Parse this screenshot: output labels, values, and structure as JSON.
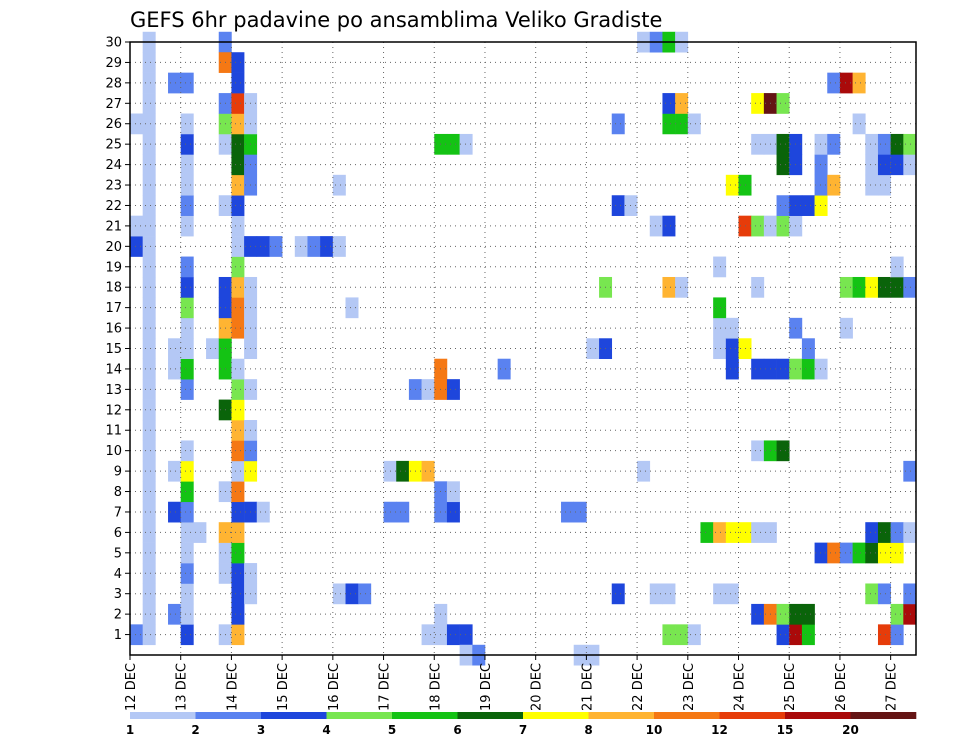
{
  "chart_data": {
    "type": "heatmap",
    "title": "GEFS 6hr padavine po ansamblima Veliko Gradiste",
    "xlabel": "",
    "ylabel": "",
    "x_ticks": [
      "12 DEC",
      "13 DEC",
      "14 DEC",
      "15 DEC",
      "16 DEC",
      "17 DEC",
      "18 DEC",
      "19 DEC",
      "20 DEC",
      "21 DEC",
      "22 DEC",
      "23 DEC",
      "24 DEC",
      "25 DEC",
      "26 DEC",
      "27 DEC"
    ],
    "y_ticks": [
      "1",
      "2",
      "3",
      "4",
      "5",
      "6",
      "7",
      "8",
      "9",
      "10",
      "11",
      "12",
      "13",
      "14",
      "15",
      "16",
      "17",
      "18",
      "19",
      "20",
      "21",
      "22",
      "23",
      "24",
      "25",
      "26",
      "27",
      "28",
      "29",
      "30"
    ],
    "x_unit": "6-hour step from 12 DEC 00",
    "ylim": [
      0,
      30
    ],
    "xlim": [
      0,
      61
    ],
    "grid": true,
    "legend_position": "bottom",
    "levels": [
      {
        "min": 1,
        "color": "#b4c8f5"
      },
      {
        "min": 2,
        "color": "#5a82f0"
      },
      {
        "min": 3,
        "color": "#1e46dc"
      },
      {
        "min": 4,
        "color": "#78e650"
      },
      {
        "min": 5,
        "color": "#14c314"
      },
      {
        "min": 6,
        "color": "#0a640a"
      },
      {
        "min": 7,
        "color": "#ffff00"
      },
      {
        "min": 8,
        "color": "#ffb432"
      },
      {
        "min": 10,
        "color": "#f57814"
      },
      {
        "min": 12,
        "color": "#e63c0a"
      },
      {
        "min": 15,
        "color": "#aa0a0a"
      },
      {
        "min": 20,
        "color": "#641414"
      }
    ],
    "legend_labels": [
      "1",
      "2",
      "3",
      "4",
      "5",
      "6",
      "7",
      "8",
      "10",
      "12",
      "15",
      "20"
    ],
    "cells": [
      [
        0,
        1,
        2
      ],
      [
        0,
        20,
        3
      ],
      [
        0,
        21,
        1
      ],
      [
        0,
        26,
        1
      ],
      [
        1,
        1,
        1
      ],
      [
        1,
        2,
        1
      ],
      [
        1,
        3,
        1
      ],
      [
        1,
        4,
        1
      ],
      [
        1,
        5,
        1
      ],
      [
        1,
        6,
        1
      ],
      [
        1,
        7,
        1
      ],
      [
        1,
        8,
        1
      ],
      [
        1,
        9,
        1
      ],
      [
        1,
        10,
        1
      ],
      [
        1,
        11,
        1
      ],
      [
        1,
        12,
        1
      ],
      [
        1,
        13,
        1
      ],
      [
        1,
        14,
        1
      ],
      [
        1,
        15,
        1
      ],
      [
        1,
        16,
        1
      ],
      [
        1,
        17,
        1
      ],
      [
        1,
        18,
        1
      ],
      [
        1,
        19,
        1
      ],
      [
        1,
        20,
        1
      ],
      [
        1,
        21,
        1
      ],
      [
        1,
        22,
        1
      ],
      [
        1,
        23,
        1
      ],
      [
        1,
        24,
        1
      ],
      [
        1,
        25,
        1
      ],
      [
        1,
        26,
        1
      ],
      [
        1,
        27,
        1
      ],
      [
        1,
        28,
        1
      ],
      [
        1,
        29,
        1
      ],
      [
        1,
        30,
        1
      ],
      [
        3,
        2,
        2
      ],
      [
        3,
        7,
        3
      ],
      [
        3,
        9,
        1
      ],
      [
        3,
        14,
        1
      ],
      [
        3,
        15,
        1
      ],
      [
        3,
        28,
        2
      ],
      [
        4,
        1,
        3
      ],
      [
        4,
        2,
        1
      ],
      [
        4,
        3,
        1
      ],
      [
        4,
        4,
        2
      ],
      [
        4,
        5,
        1
      ],
      [
        4,
        6,
        1
      ],
      [
        4,
        7,
        2
      ],
      [
        4,
        8,
        5
      ],
      [
        4,
        9,
        7
      ],
      [
        4,
        10,
        1
      ],
      [
        4,
        13,
        2
      ],
      [
        4,
        14,
        5
      ],
      [
        4,
        15,
        1
      ],
      [
        4,
        16,
        1
      ],
      [
        4,
        17,
        4
      ],
      [
        4,
        18,
        3
      ],
      [
        4,
        19,
        2
      ],
      [
        4,
        21,
        1
      ],
      [
        4,
        22,
        2
      ],
      [
        4,
        23,
        1
      ],
      [
        4,
        24,
        1
      ],
      [
        4,
        25,
        3
      ],
      [
        4,
        26,
        1
      ],
      [
        4,
        28,
        2
      ],
      [
        5,
        6,
        1
      ],
      [
        6,
        15,
        1
      ],
      [
        7,
        1,
        1
      ],
      [
        7,
        4,
        1
      ],
      [
        7,
        5,
        1
      ],
      [
        7,
        6,
        8
      ],
      [
        7,
        8,
        1
      ],
      [
        7,
        12,
        6
      ],
      [
        7,
        14,
        5
      ],
      [
        7,
        15,
        5
      ],
      [
        7,
        16,
        8
      ],
      [
        7,
        17,
        3
      ],
      [
        7,
        18,
        3
      ],
      [
        7,
        22,
        1
      ],
      [
        7,
        25,
        1
      ],
      [
        7,
        26,
        4
      ],
      [
        7,
        27,
        2
      ],
      [
        7,
        30,
        2
      ],
      [
        7,
        29,
        10
      ],
      [
        8,
        1,
        8
      ],
      [
        8,
        2,
        3
      ],
      [
        8,
        3,
        3
      ],
      [
        8,
        4,
        3
      ],
      [
        8,
        5,
        5
      ],
      [
        8,
        6,
        8
      ],
      [
        8,
        7,
        3
      ],
      [
        8,
        8,
        10
      ],
      [
        8,
        9,
        1
      ],
      [
        8,
        10,
        10
      ],
      [
        8,
        11,
        8
      ],
      [
        8,
        12,
        7
      ],
      [
        8,
        13,
        4
      ],
      [
        8,
        14,
        1
      ],
      [
        8,
        16,
        10
      ],
      [
        8,
        17,
        10
      ],
      [
        8,
        18,
        8
      ],
      [
        8,
        19,
        4
      ],
      [
        8,
        20,
        1
      ],
      [
        8,
        21,
        1
      ],
      [
        8,
        22,
        3
      ],
      [
        8,
        23,
        8
      ],
      [
        8,
        24,
        6
      ],
      [
        8,
        25,
        6
      ],
      [
        8,
        26,
        8
      ],
      [
        8,
        27,
        12
      ],
      [
        8,
        28,
        3
      ],
      [
        8,
        29,
        3
      ],
      [
        9,
        3,
        1
      ],
      [
        9,
        4,
        1
      ],
      [
        9,
        7,
        3
      ],
      [
        9,
        9,
        7
      ],
      [
        9,
        10,
        2
      ],
      [
        9,
        11,
        1
      ],
      [
        9,
        13,
        1
      ],
      [
        9,
        15,
        1
      ],
      [
        9,
        16,
        1
      ],
      [
        9,
        17,
        1
      ],
      [
        9,
        18,
        1
      ],
      [
        9,
        20,
        3
      ],
      [
        9,
        23,
        2
      ],
      [
        9,
        24,
        2
      ],
      [
        9,
        25,
        5
      ],
      [
        9,
        26,
        1
      ],
      [
        9,
        27,
        1
      ],
      [
        10,
        7,
        1
      ],
      [
        10,
        20,
        3
      ],
      [
        11,
        20,
        2
      ],
      [
        13,
        20,
        1
      ],
      [
        14,
        20,
        2
      ],
      [
        15,
        20,
        3
      ],
      [
        16,
        3,
        1
      ],
      [
        16,
        20,
        1
      ],
      [
        16,
        23,
        1
      ],
      [
        17,
        3,
        3
      ],
      [
        17,
        17,
        1
      ],
      [
        18,
        3,
        2
      ],
      [
        20,
        7,
        2
      ],
      [
        20,
        9,
        1
      ],
      [
        21,
        7,
        2
      ],
      [
        21,
        9,
        6
      ],
      [
        22,
        9,
        7
      ],
      [
        23,
        9,
        8
      ],
      [
        24,
        25,
        5
      ],
      [
        25,
        25,
        5
      ],
      [
        22,
        13,
        2
      ],
      [
        23,
        13,
        1
      ],
      [
        23,
        1,
        1
      ],
      [
        24,
        1,
        1
      ],
      [
        24,
        2,
        1
      ],
      [
        24,
        7,
        2
      ],
      [
        24,
        8,
        2
      ],
      [
        24,
        13,
        10
      ],
      [
        24,
        14,
        10
      ],
      [
        25,
        1,
        3
      ],
      [
        25,
        7,
        3
      ],
      [
        25,
        8,
        1
      ],
      [
        25,
        13,
        3
      ],
      [
        26,
        1,
        3
      ],
      [
        26,
        25,
        1
      ],
      [
        26,
        0,
        1
      ],
      [
        27,
        0,
        2
      ],
      [
        29,
        14,
        2
      ],
      [
        34,
        7,
        2
      ],
      [
        35,
        7,
        2
      ],
      [
        35,
        0,
        1
      ],
      [
        36,
        0,
        1
      ],
      [
        36,
        15,
        1
      ],
      [
        37,
        15,
        3
      ],
      [
        37,
        18,
        4
      ],
      [
        38,
        3,
        3
      ],
      [
        38,
        22,
        3
      ],
      [
        38,
        26,
        2
      ],
      [
        39,
        22,
        1
      ],
      [
        40,
        9,
        1
      ],
      [
        40,
        30,
        1
      ],
      [
        41,
        3,
        1
      ],
      [
        41,
        21,
        1
      ],
      [
        41,
        30,
        2
      ],
      [
        42,
        1,
        4
      ],
      [
        42,
        3,
        1
      ],
      [
        42,
        18,
        8
      ],
      [
        42,
        21,
        3
      ],
      [
        42,
        26,
        5
      ],
      [
        42,
        27,
        3
      ],
      [
        42,
        30,
        5
      ],
      [
        43,
        1,
        4
      ],
      [
        43,
        18,
        1
      ],
      [
        43,
        26,
        5
      ],
      [
        43,
        27,
        8
      ],
      [
        43,
        30,
        1
      ],
      [
        44,
        1,
        1
      ],
      [
        44,
        26,
        1
      ],
      [
        45,
        6,
        5
      ],
      [
        46,
        6,
        8
      ],
      [
        46,
        15,
        1
      ],
      [
        46,
        16,
        1
      ],
      [
        46,
        17,
        5
      ],
      [
        46,
        19,
        1
      ],
      [
        46,
        3,
        1
      ],
      [
        47,
        6,
        7
      ],
      [
        47,
        14,
        3
      ],
      [
        47,
        15,
        3
      ],
      [
        47,
        16,
        1
      ],
      [
        47,
        23,
        7
      ],
      [
        47,
        3,
        1
      ],
      [
        48,
        6,
        7
      ],
      [
        48,
        15,
        7
      ],
      [
        48,
        21,
        12
      ],
      [
        48,
        23,
        5
      ],
      [
        49,
        6,
        1
      ],
      [
        49,
        2,
        3
      ],
      [
        49,
        10,
        1
      ],
      [
        49,
        14,
        3
      ],
      [
        49,
        21,
        4
      ],
      [
        49,
        25,
        1
      ],
      [
        49,
        27,
        7
      ],
      [
        49,
        18,
        1
      ],
      [
        50,
        2,
        10
      ],
      [
        50,
        6,
        1
      ],
      [
        50,
        10,
        5
      ],
      [
        50,
        14,
        3
      ],
      [
        50,
        21,
        1
      ],
      [
        50,
        25,
        1
      ],
      [
        50,
        27,
        20
      ],
      [
        51,
        1,
        3
      ],
      [
        51,
        2,
        4
      ],
      [
        51,
        10,
        6
      ],
      [
        51,
        14,
        3
      ],
      [
        51,
        21,
        4
      ],
      [
        51,
        22,
        2
      ],
      [
        51,
        24,
        6
      ],
      [
        51,
        25,
        6
      ],
      [
        51,
        27,
        4
      ],
      [
        52,
        1,
        15
      ],
      [
        52,
        2,
        6
      ],
      [
        52,
        14,
        4
      ],
      [
        52,
        16,
        2
      ],
      [
        52,
        21,
        1
      ],
      [
        52,
        22,
        3
      ],
      [
        52,
        24,
        3
      ],
      [
        52,
        25,
        3
      ],
      [
        53,
        1,
        5
      ],
      [
        53,
        2,
        6
      ],
      [
        53,
        14,
        5
      ],
      [
        53,
        15,
        2
      ],
      [
        53,
        22,
        3
      ],
      [
        54,
        5,
        3
      ],
      [
        54,
        14,
        1
      ],
      [
        54,
        22,
        7
      ],
      [
        54,
        23,
        2
      ],
      [
        54,
        24,
        2
      ],
      [
        54,
        25,
        1
      ],
      [
        55,
        5,
        10
      ],
      [
        55,
        23,
        8
      ],
      [
        55,
        25,
        2
      ],
      [
        55,
        28,
        2
      ],
      [
        56,
        5,
        2
      ],
      [
        56,
        16,
        1
      ],
      [
        56,
        18,
        4
      ],
      [
        56,
        28,
        15
      ],
      [
        57,
        5,
        5
      ],
      [
        57,
        18,
        5
      ],
      [
        57,
        26,
        1
      ],
      [
        57,
        28,
        8
      ],
      [
        58,
        3,
        4
      ],
      [
        58,
        5,
        6
      ],
      [
        58,
        6,
        3
      ],
      [
        58,
        18,
        7
      ],
      [
        58,
        23,
        1
      ],
      [
        58,
        24,
        1
      ],
      [
        58,
        25,
        1
      ],
      [
        59,
        1,
        12
      ],
      [
        59,
        3,
        2
      ],
      [
        59,
        5,
        7
      ],
      [
        59,
        6,
        6
      ],
      [
        59,
        18,
        6
      ],
      [
        59,
        23,
        1
      ],
      [
        59,
        24,
        3
      ],
      [
        59,
        25,
        2
      ],
      [
        60,
        1,
        2
      ],
      [
        60,
        2,
        4
      ],
      [
        60,
        5,
        7
      ],
      [
        60,
        6,
        2
      ],
      [
        60,
        18,
        6
      ],
      [
        60,
        19,
        1
      ],
      [
        60,
        24,
        3
      ],
      [
        60,
        25,
        6
      ],
      [
        61,
        2,
        15
      ],
      [
        61,
        3,
        2
      ],
      [
        61,
        6,
        1
      ],
      [
        61,
        9,
        2
      ],
      [
        61,
        18,
        2
      ],
      [
        61,
        24,
        1
      ],
      [
        61,
        25,
        4
      ]
    ]
  }
}
